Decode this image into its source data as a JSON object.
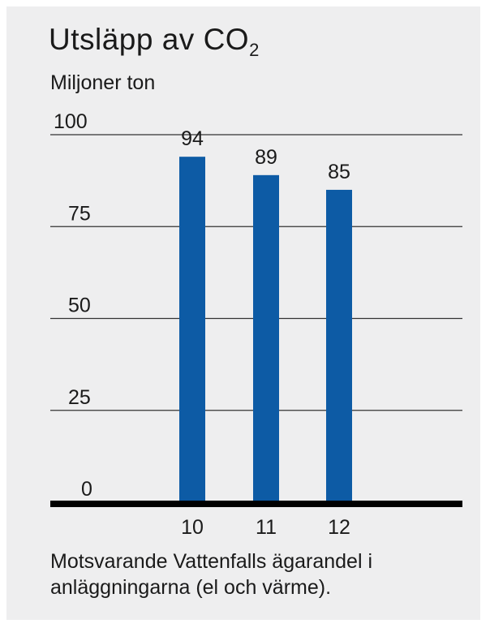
{
  "title": {
    "main": "Utsläpp av CO",
    "sub": "2"
  },
  "subtitle": "Miljoner ton",
  "note": "Motsvarande Vattenfalls ägarandel i anläggningarna (el och värme).",
  "colors": {
    "bar": "#0d5ba5",
    "grid": "#333333",
    "baseline": "#000000",
    "background": "#eeeeef",
    "text": "#1a1a1a"
  },
  "chart_data": {
    "type": "bar",
    "categories": [
      "10",
      "11",
      "12"
    ],
    "values": [
      94,
      89,
      85
    ],
    "yticks": [
      0,
      25,
      50,
      75,
      100
    ],
    "ylim": [
      0,
      100
    ],
    "data_labels": [
      "94",
      "89",
      "85"
    ],
    "grid": true
  }
}
